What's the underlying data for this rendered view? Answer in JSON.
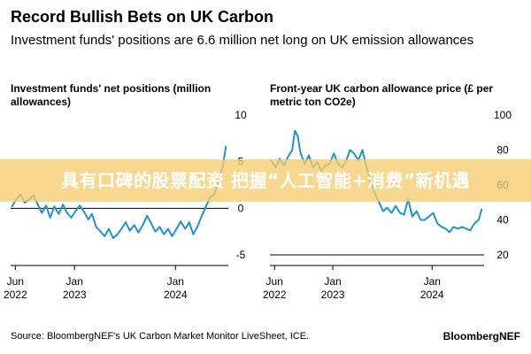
{
  "title": "Record Bullish Bets on UK Carbon",
  "subtitle": "Investment funds' positions are 6.6 million net long on UK emission allowances",
  "banner_text": "具有口碑的股票配资 把握“人工智能+消费”新机遇",
  "source": "Source: BloombergNEF's UK Carbon Market Monitor LiveSheet, ICE.",
  "brand": "BloombergNEF",
  "colors": {
    "line": "#1f93d0",
    "axis": "#000000",
    "banner": "#f5cd6e",
    "banner_text": "#ffffff"
  },
  "chart_data": [
    {
      "type": "line",
      "title": "Investment funds' net positions (million allowances)",
      "ylim": [
        -5,
        10
      ],
      "yticks": [
        10,
        5,
        0,
        -5
      ],
      "xlim": [
        "2022-05-15",
        "2024-07-10"
      ],
      "xticks": [
        {
          "value": "2022-06-01",
          "label": [
            "Jun",
            "2022"
          ]
        },
        {
          "value": "2023-01-01",
          "label": [
            "Jan",
            "2023"
          ]
        },
        {
          "value": "2024-01-01",
          "label": [
            "Jan",
            "2024"
          ]
        }
      ],
      "y_axis_side": "right",
      "grid": false,
      "series": [
        {
          "x": [
            "2022-05-20",
            "2022-06-05",
            "2022-06-20",
            "2022-07-05",
            "2022-07-20",
            "2022-08-05",
            "2022-08-20",
            "2022-09-05",
            "2022-09-20",
            "2022-10-05",
            "2022-10-20",
            "2022-11-05",
            "2022-11-20",
            "2022-12-05",
            "2022-12-20",
            "2023-01-05",
            "2023-01-20",
            "2023-02-05",
            "2023-02-20",
            "2023-03-05",
            "2023-03-20",
            "2023-04-05",
            "2023-04-20",
            "2023-05-05",
            "2023-05-20",
            "2023-06-05",
            "2023-06-20",
            "2023-07-05",
            "2023-07-20",
            "2023-08-05",
            "2023-08-20",
            "2023-09-05",
            "2023-09-20",
            "2023-10-05",
            "2023-10-20",
            "2023-11-05",
            "2023-11-20",
            "2023-12-05",
            "2023-12-20",
            "2024-01-05",
            "2024-01-20",
            "2024-02-05",
            "2024-02-20",
            "2024-03-05",
            "2024-03-20",
            "2024-04-05",
            "2024-04-20",
            "2024-05-05",
            "2024-05-20",
            "2024-06-05",
            "2024-06-20",
            "2024-07-01"
          ],
          "values": [
            0.2,
            1.0,
            1.5,
            0.6,
            0.9,
            1.4,
            0.5,
            -0.5,
            0.3,
            -1.0,
            0.2,
            -0.6,
            0.4,
            -0.5,
            -1.0,
            -0.3,
            0.3,
            -0.4,
            -1.2,
            -0.6,
            -2.0,
            -2.5,
            -3.0,
            -2.2,
            -3.2,
            -2.8,
            -2.2,
            -1.5,
            -2.4,
            -1.8,
            -2.6,
            -1.8,
            -0.8,
            -1.6,
            -2.5,
            -2.0,
            -2.8,
            -2.2,
            -3.0,
            -2.2,
            -1.4,
            -2.2,
            -1.5,
            -2.8,
            -2.0,
            -0.8,
            0.2,
            1.2,
            1.5,
            3.0,
            4.5,
            6.6
          ]
        }
      ]
    },
    {
      "type": "line",
      "title": "Front-year UK carbon allowance price (£ per metric ton CO2e)",
      "ylim": [
        20,
        100
      ],
      "yticks": [
        100,
        80,
        60,
        40,
        20
      ],
      "xlim": [
        "2022-05-15",
        "2024-07-10"
      ],
      "xticks": [
        {
          "value": "2022-06-01",
          "label": [
            "Jun",
            "2022"
          ]
        },
        {
          "value": "2023-01-01",
          "label": [
            "Jan",
            "2023"
          ]
        },
        {
          "value": "2024-01-01",
          "label": [
            "Jan",
            "2024"
          ]
        }
      ],
      "y_axis_side": "right",
      "grid": false,
      "series": [
        {
          "x": [
            "2022-05-20",
            "2022-06-05",
            "2022-06-20",
            "2022-07-05",
            "2022-07-20",
            "2022-08-05",
            "2022-08-15",
            "2022-08-25",
            "2022-09-05",
            "2022-09-20",
            "2022-10-05",
            "2022-10-20",
            "2022-11-05",
            "2022-11-20",
            "2022-12-05",
            "2022-12-20",
            "2023-01-05",
            "2023-01-20",
            "2023-02-05",
            "2023-02-20",
            "2023-03-05",
            "2023-03-20",
            "2023-04-05",
            "2023-04-20",
            "2023-05-05",
            "2023-05-20",
            "2023-06-05",
            "2023-06-20",
            "2023-07-05",
            "2023-07-20",
            "2023-08-05",
            "2023-08-20",
            "2023-09-05",
            "2023-09-20",
            "2023-10-05",
            "2023-10-20",
            "2023-11-05",
            "2023-11-20",
            "2023-12-05",
            "2023-12-20",
            "2024-01-05",
            "2024-01-20",
            "2024-02-05",
            "2024-02-20",
            "2024-03-05",
            "2024-03-20",
            "2024-04-05",
            "2024-04-20",
            "2024-05-05",
            "2024-05-20",
            "2024-06-05",
            "2024-06-20",
            "2024-07-01"
          ],
          "values": [
            74,
            70,
            75,
            71,
            76,
            80,
            91,
            88,
            78,
            72,
            77,
            70,
            73,
            68,
            71,
            72,
            78,
            72,
            70,
            74,
            80,
            78,
            74,
            80,
            70,
            62,
            55,
            50,
            45,
            47,
            44,
            48,
            44,
            43,
            52,
            42,
            45,
            40,
            40,
            42,
            44,
            38,
            36,
            35,
            33,
            36,
            35,
            36,
            35,
            34,
            38,
            40,
            46
          ]
        }
      ]
    }
  ]
}
